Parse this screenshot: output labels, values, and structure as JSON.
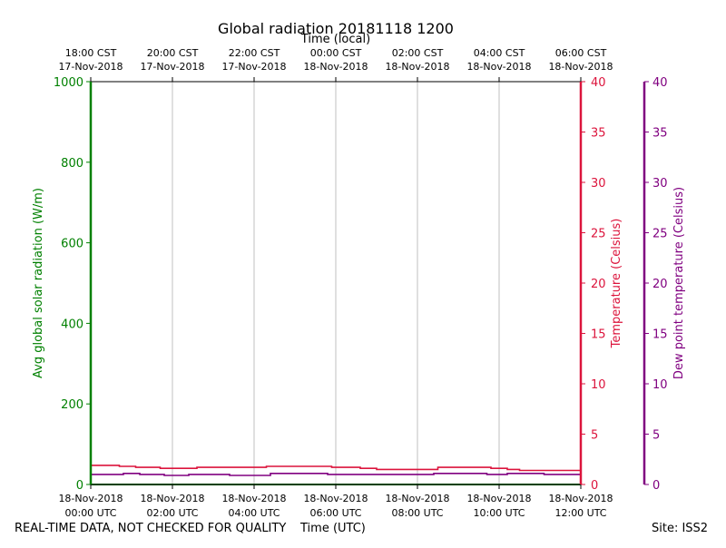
{
  "chart_data": {
    "type": "line",
    "title": "Global radiation 20181118 1200",
    "x_top_label": "Time (local)",
    "x_bottom_label": "Time (UTC)",
    "y_left_label": "Avg global solar radiation (W/m)",
    "y_right1_label": "Temperature (Celsius)",
    "y_right2_label": "Dew point temperature (Celsius)",
    "xlim_hours_utc": [
      0,
      12
    ],
    "ylim_left": [
      0,
      1000
    ],
    "ylim_right1": [
      0,
      40
    ],
    "ylim_right2": [
      0,
      40
    ],
    "left_ticks": [
      "0",
      "200",
      "400",
      "600",
      "800",
      "1000"
    ],
    "right1_ticks": [
      "0",
      "5",
      "10",
      "15",
      "20",
      "25",
      "30",
      "35",
      "40"
    ],
    "right2_ticks": [
      "0",
      "5",
      "10",
      "15",
      "20",
      "25",
      "30",
      "35",
      "40"
    ],
    "bottom_ticks": [
      {
        "h": 0,
        "line1": "18-Nov-2018",
        "line2": "00:00 UTC"
      },
      {
        "h": 2,
        "line1": "18-Nov-2018",
        "line2": "02:00 UTC"
      },
      {
        "h": 4,
        "line1": "18-Nov-2018",
        "line2": "04:00 UTC"
      },
      {
        "h": 6,
        "line1": "18-Nov-2018",
        "line2": "06:00 UTC"
      },
      {
        "h": 8,
        "line1": "18-Nov-2018",
        "line2": "08:00 UTC"
      },
      {
        "h": 10,
        "line1": "18-Nov-2018",
        "line2": "10:00 UTC"
      },
      {
        "h": 12,
        "line1": "18-Nov-2018",
        "line2": "12:00 UTC"
      }
    ],
    "top_ticks": [
      {
        "h": 0,
        "line1": "18:00 CST",
        "line2": "17-Nov-2018"
      },
      {
        "h": 2,
        "line1": "20:00 CST",
        "line2": "17-Nov-2018"
      },
      {
        "h": 4,
        "line1": "22:00 CST",
        "line2": "17-Nov-2018"
      },
      {
        "h": 6,
        "line1": "00:00 CST",
        "line2": "18-Nov-2018"
      },
      {
        "h": 8,
        "line1": "02:00 CST",
        "line2": "18-Nov-2018"
      },
      {
        "h": 10,
        "line1": "04:00 CST",
        "line2": "18-Nov-2018"
      },
      {
        "h": 12,
        "line1": "06:00 CST",
        "line2": "18-Nov-2018"
      }
    ],
    "series": [
      {
        "axis": "left",
        "color": "#008000",
        "x": [
          0,
          2,
          4,
          6,
          8,
          10,
          12
        ],
        "values": [
          0,
          0,
          0,
          0,
          0,
          0,
          0
        ]
      },
      {
        "axis": "right1",
        "color": "#dc143c",
        "x": [
          0,
          0.7,
          1.1,
          1.7,
          2.6,
          3.6,
          4.3,
          5.0,
          5.9,
          6.6,
          7.0,
          7.8,
          8.5,
          9.4,
          9.8,
          10.2,
          10.5,
          11.0,
          12.0
        ],
        "values": [
          1.9,
          1.8,
          1.7,
          1.6,
          1.7,
          1.7,
          1.8,
          1.8,
          1.7,
          1.6,
          1.5,
          1.5,
          1.7,
          1.7,
          1.6,
          1.5,
          1.4,
          1.4,
          1.4
        ]
      },
      {
        "axis": "right2",
        "color": "#800080",
        "x": [
          0,
          0.3,
          0.8,
          1.2,
          1.8,
          2.4,
          3.4,
          4.4,
          5.0,
          5.8,
          6.6,
          7.4,
          8.4,
          9.2,
          9.7,
          10.2,
          11.1,
          12.0
        ],
        "values": [
          1.0,
          1.0,
          1.1,
          1.0,
          0.9,
          1.0,
          0.9,
          1.1,
          1.1,
          1.0,
          1.0,
          1.0,
          1.1,
          1.1,
          1.0,
          1.1,
          1.0,
          1.0
        ]
      }
    ]
  },
  "footer": {
    "disclaimer": "REAL-TIME DATA, NOT CHECKED FOR QUALITY",
    "site": "Site: ISS2"
  }
}
